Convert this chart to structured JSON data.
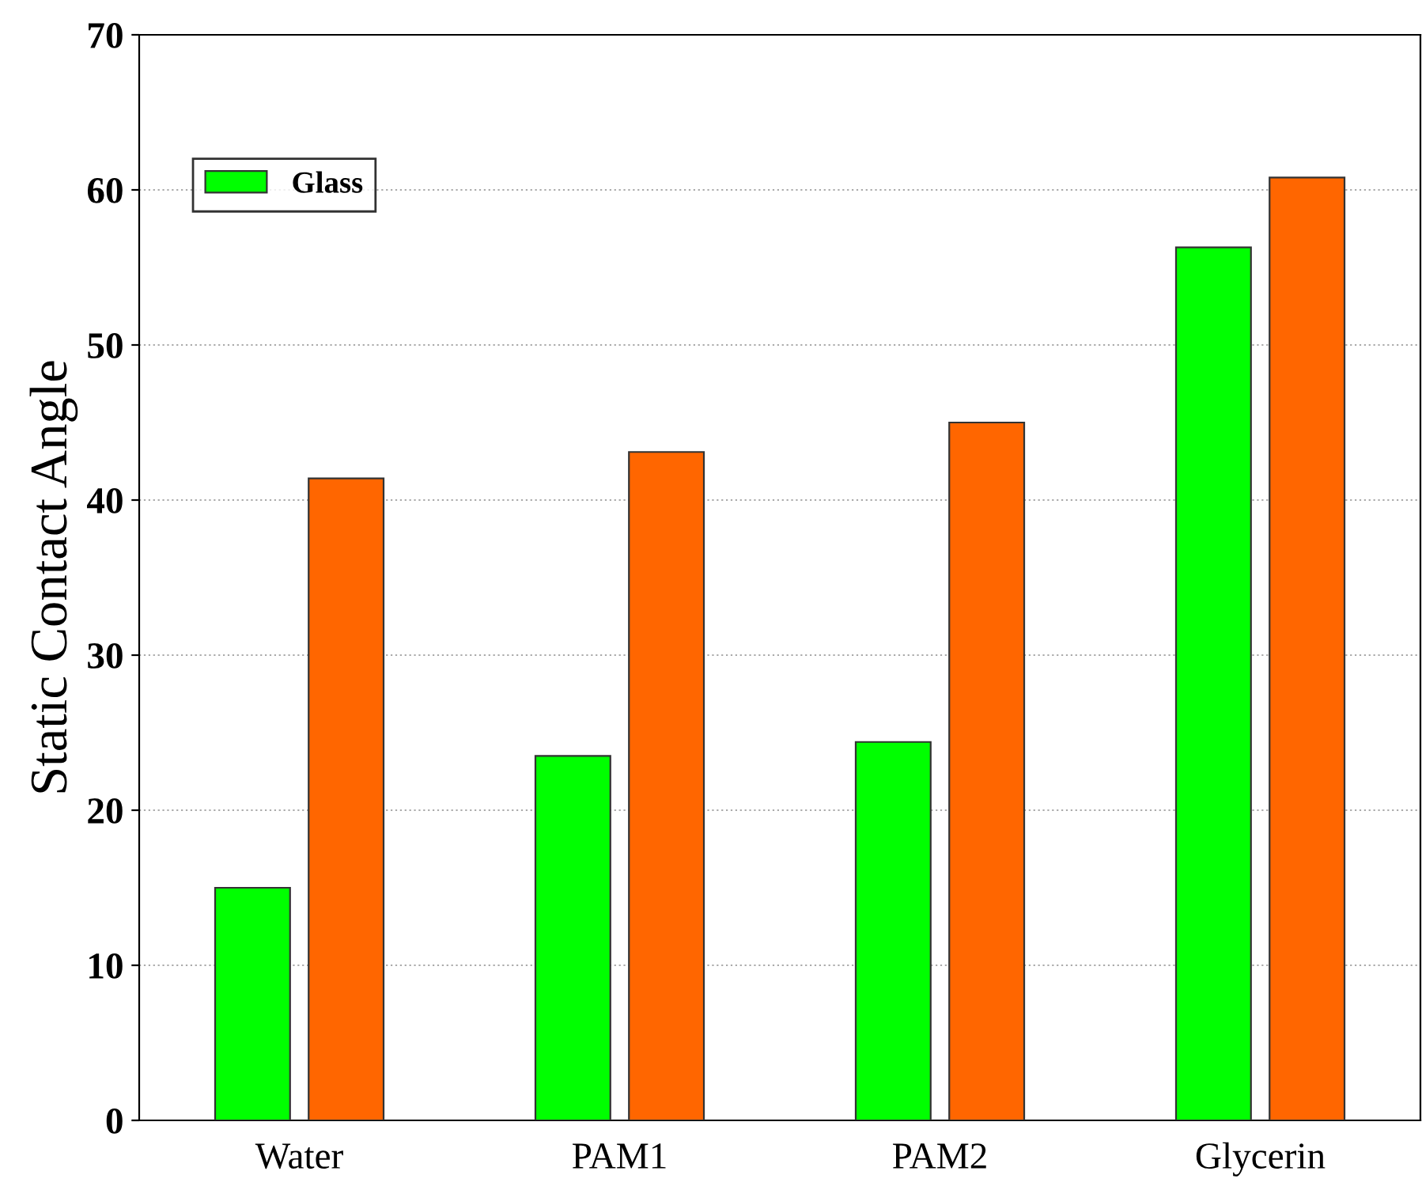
{
  "chart_data": {
    "type": "bar",
    "ylabel": "Static Contact Angle",
    "categories": [
      "Water",
      "PAM1",
      "PAM2",
      "Glycerin"
    ],
    "series": [
      {
        "name": "Glass",
        "color": "#00ff00",
        "values": [
          15.0,
          23.5,
          24.4,
          56.3
        ]
      },
      {
        "color": "#ff6600",
        "values": [
          41.4,
          43.1,
          45.0,
          60.8
        ]
      }
    ],
    "ylim": [
      0,
      70
    ],
    "yticks": [
      0,
      10,
      20,
      30,
      40,
      50,
      60,
      70
    ],
    "grid": "y",
    "legend": "top left"
  }
}
